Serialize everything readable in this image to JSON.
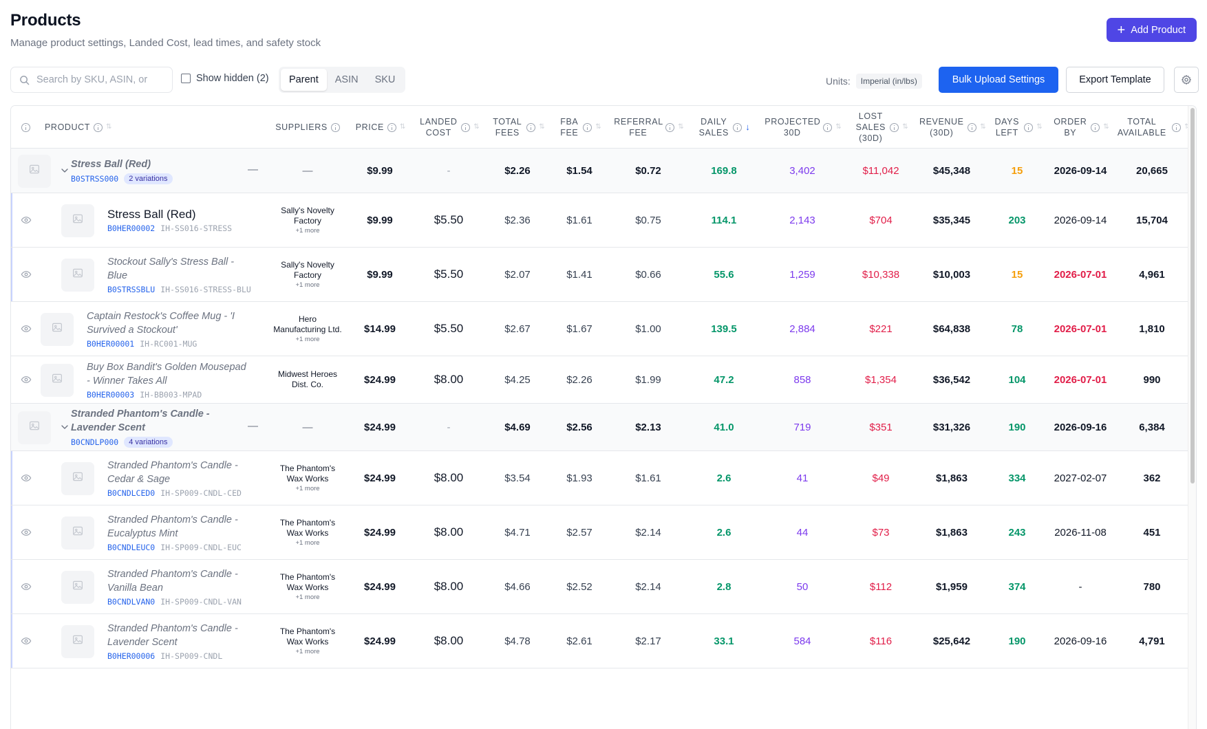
{
  "header": {
    "title": "Products",
    "subtitle": "Manage product settings, Landed Cost, lead times, and safety stock",
    "add_label": "Add Product"
  },
  "toolbar": {
    "search_placeholder": "Search by SKU, ASIN, or",
    "show_hidden": "Show hidden (2)",
    "views": [
      "Parent",
      "ASIN",
      "SKU"
    ],
    "active_view": "Parent",
    "units_label": "Units:",
    "units_value": "Imperial (in/lbs)",
    "bulk_label": "Bulk Upload Settings",
    "export_label": "Export Template"
  },
  "columns": {
    "product": "PRODUCT",
    "suppliers": "SUPPLIERS",
    "price": "PRICE",
    "landed": "LANDED COST",
    "total_fees": "TOTAL FEES",
    "fba_fee": "FBA FEE",
    "referral_fee": "REFERRAL FEE",
    "daily_sales": "DAILY SALES",
    "projected": "PROJECTED 30D",
    "lost_sales": "LOST SALES (30D)",
    "revenue": "REVENUE (30D)",
    "days_left": "DAYS LEFT",
    "order_by": "ORDER BY",
    "total_available": "TOTAL AVAILABLE"
  },
  "rows": [
    {
      "type": "parent",
      "name": "Stress Ball (Red)",
      "asin": "B0STRSS000",
      "badge": "2 variations",
      "dash": "—",
      "supplier": "—",
      "price": "$9.99",
      "landed": "-",
      "total_fees": "$2.26",
      "fba_fee": "$1.54",
      "referral_fee": "$0.72",
      "daily_sales": "169.8",
      "projected": "3,402",
      "lost": "$11,042",
      "revenue": "$45,348",
      "days_left": "15",
      "order_by": "2026-09-14",
      "available": "20,665"
    },
    {
      "type": "child",
      "name": "Stress Ball (Red)",
      "asin": "B0HER00002",
      "sku": "IH-SS016-STRESS",
      "supplier": "Sally's Novelty Factory",
      "more": "+1 more",
      "price": "$9.99",
      "landed": "$5.50",
      "total_fees": "$2.36",
      "fba_fee": "$1.61",
      "referral_fee": "$0.75",
      "daily_sales": "114.1",
      "projected": "2,143",
      "lost": "$704",
      "revenue": "$35,345",
      "days_left": "203",
      "order_by": "2026-09-14",
      "available": "15,704"
    },
    {
      "type": "child",
      "name": "Stockout Sally's Stress Ball - Blue",
      "asin": "B0STRSSBLU",
      "sku": "IH-SS016-STRESS-BLU",
      "supplier": "Sally's Novelty Factory",
      "more": "+1 more",
      "price": "$9.99",
      "landed": "$5.50",
      "total_fees": "$2.07",
      "fba_fee": "$1.41",
      "referral_fee": "$0.66",
      "daily_sales": "55.6",
      "projected": "1,259",
      "lost": "$10,338",
      "revenue": "$10,003",
      "days_left": "15",
      "order_by": "2026-07-01",
      "available": "4,961"
    },
    {
      "type": "single",
      "name": "Captain Restock's Coffee Mug - 'I Survived a Stockout'",
      "asin": "B0HER00001",
      "sku": "IH-RC001-MUG",
      "supplier": "Hero Manufacturing Ltd.",
      "more": "+1 more",
      "price": "$14.99",
      "landed": "$5.50",
      "total_fees": "$2.67",
      "fba_fee": "$1.67",
      "referral_fee": "$1.00",
      "daily_sales": "139.5",
      "projected": "2,884",
      "lost": "$221",
      "revenue": "$64,838",
      "days_left": "78",
      "order_by": "2026-07-01",
      "available": "1,810"
    },
    {
      "type": "single",
      "name": "Buy Box Bandit's Golden Mousepad - Winner Takes All",
      "asin": "B0HER00003",
      "sku": "IH-BB003-MPAD",
      "supplier": "Midwest Heroes Dist. Co.",
      "more": "",
      "price": "$24.99",
      "landed": "$8.00",
      "total_fees": "$4.25",
      "fba_fee": "$2.26",
      "referral_fee": "$1.99",
      "daily_sales": "47.2",
      "projected": "858",
      "lost": "$1,354",
      "revenue": "$36,542",
      "days_left": "104",
      "order_by": "2026-07-01",
      "available": "990"
    },
    {
      "type": "parent",
      "name": "Stranded Phantom's Candle - Lavender Scent",
      "asin": "B0CNDLP000",
      "badge": "4 variations",
      "dash": "—",
      "supplier": "—",
      "price": "$24.99",
      "landed": "-",
      "total_fees": "$4.69",
      "fba_fee": "$2.56",
      "referral_fee": "$2.13",
      "daily_sales": "41.0",
      "projected": "719",
      "lost": "$351",
      "revenue": "$31,326",
      "days_left": "190",
      "order_by": "2026-09-16",
      "available": "6,384"
    },
    {
      "type": "child",
      "name": "Stranded Phantom's Candle - Cedar & Sage",
      "asin": "B0CNDLCED0",
      "sku": "IH-SP009-CNDL-CED",
      "supplier": "The Phantom's Wax Works",
      "more": "+1 more",
      "price": "$24.99",
      "landed": "$8.00",
      "total_fees": "$3.54",
      "fba_fee": "$1.93",
      "referral_fee": "$1.61",
      "daily_sales": "2.6",
      "projected": "41",
      "lost": "$49",
      "revenue": "$1,863",
      "days_left": "334",
      "order_by": "2027-02-07",
      "available": "362"
    },
    {
      "type": "child",
      "name": "Stranded Phantom's Candle - Eucalyptus Mint",
      "asin": "B0CNDLEUC0",
      "sku": "IH-SP009-CNDL-EUC",
      "supplier": "The Phantom's Wax Works",
      "more": "+1 more",
      "price": "$24.99",
      "landed": "$8.00",
      "total_fees": "$4.71",
      "fba_fee": "$2.57",
      "referral_fee": "$2.14",
      "daily_sales": "2.6",
      "projected": "44",
      "lost": "$73",
      "revenue": "$1,863",
      "days_left": "243",
      "order_by": "2026-11-08",
      "available": "451"
    },
    {
      "type": "child",
      "name": "Stranded Phantom's Candle - Vanilla Bean",
      "asin": "B0CNDLVAN0",
      "sku": "IH-SP009-CNDL-VAN",
      "supplier": "The Phantom's Wax Works",
      "more": "+1 more",
      "price": "$24.99",
      "landed": "$8.00",
      "total_fees": "$4.66",
      "fba_fee": "$2.52",
      "referral_fee": "$2.14",
      "daily_sales": "2.8",
      "projected": "50",
      "lost": "$112",
      "revenue": "$1,959",
      "days_left": "374",
      "order_by": "-",
      "available": "780"
    },
    {
      "type": "child",
      "name": "Stranded Phantom's Candle - Lavender Scent",
      "asin": "B0HER00006",
      "sku": "IH-SP009-CNDL",
      "supplier": "The Phantom's Wax Works",
      "more": "+1 more",
      "price": "$24.99",
      "landed": "$8.00",
      "total_fees": "$4.78",
      "fba_fee": "$2.61",
      "referral_fee": "$2.17",
      "daily_sales": "33.1",
      "projected": "584",
      "lost": "$116",
      "revenue": "$25,642",
      "days_left": "190",
      "order_by": "2026-09-16",
      "available": "4,791"
    }
  ],
  "colors": {
    "accent": "#4f46e5",
    "primary": "#1d63f0",
    "green": "#059669",
    "purple": "#7c3aed",
    "red": "#e11d48",
    "orange": "#f59e0b"
  }
}
